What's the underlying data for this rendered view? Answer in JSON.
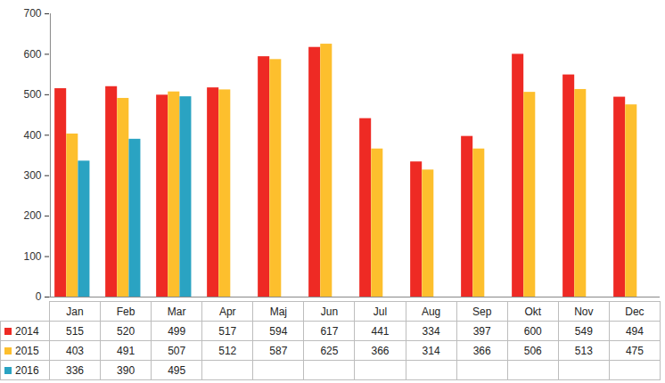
{
  "chart_data": {
    "type": "bar",
    "categories": [
      "Jan",
      "Feb",
      "Mar",
      "Apr",
      "Maj",
      "Jun",
      "Jul",
      "Aug",
      "Sep",
      "Okt",
      "Nov",
      "Dec"
    ],
    "series": [
      {
        "name": "2014",
        "color": "#ee2a24",
        "values": [
          515,
          520,
          499,
          517,
          594,
          617,
          441,
          334,
          397,
          600,
          549,
          494
        ]
      },
      {
        "name": "2015",
        "color": "#fdbf2d",
        "values": [
          403,
          491,
          507,
          512,
          587,
          625,
          366,
          314,
          366,
          506,
          513,
          475
        ]
      },
      {
        "name": "2016",
        "color": "#2aa3c2",
        "values": [
          336,
          390,
          495,
          null,
          null,
          null,
          null,
          null,
          null,
          null,
          null,
          null
        ]
      }
    ],
    "ylim": [
      0,
      700
    ],
    "yticks": [
      0,
      100,
      200,
      300,
      400,
      500,
      600,
      700
    ],
    "grid": false,
    "legend": "bottom"
  }
}
